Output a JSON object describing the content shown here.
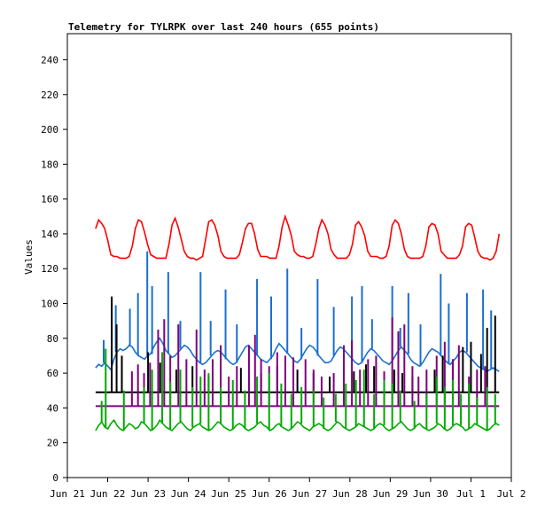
{
  "chart_data": {
    "type": "line",
    "title": "Telemetry for TYLRPK over last 240 hours (655 points)",
    "xlabel": "",
    "ylabel": "Values",
    "ylim": [
      0,
      255
    ],
    "yticks": [
      0,
      20,
      40,
      60,
      80,
      100,
      120,
      140,
      160,
      180,
      200,
      220,
      240
    ],
    "xlim": [
      "Jun 21",
      "Jul 2"
    ],
    "xticks": [
      "Jun 21",
      "Jun 22",
      "Jun 23",
      "Jun 24",
      "Jun 25",
      "Jun 26",
      "Jun 27",
      "Jun 28",
      "Jun 29",
      "Jun 30",
      "Jul 1",
      "Jul 2"
    ],
    "grid": false,
    "legend": "none",
    "x_start_days": 0.7,
    "x_end_days": 10.7,
    "series": [
      {
        "color": "#ff0000",
        "description": "daily cycle between ~126 and ~150",
        "values": [
          143,
          148,
          146,
          143,
          136,
          128,
          127,
          127,
          126,
          126,
          126,
          127,
          133,
          143,
          148,
          147,
          141,
          134,
          128,
          127,
          126,
          126,
          126,
          126,
          134,
          145,
          149,
          144,
          137,
          130,
          127,
          126,
          126,
          125,
          126,
          127,
          137,
          147,
          148,
          145,
          139,
          130,
          127,
          126,
          126,
          126,
          126,
          128,
          135,
          143,
          146,
          146,
          140,
          131,
          127,
          127,
          127,
          126,
          126,
          126,
          133,
          144,
          150,
          145,
          139,
          130,
          128,
          127,
          127,
          126,
          126,
          127,
          134,
          143,
          148,
          145,
          140,
          131,
          128,
          126,
          126,
          126,
          126,
          128,
          134,
          145,
          147,
          144,
          139,
          130,
          127,
          127,
          127,
          126,
          126,
          127,
          133,
          145,
          148,
          146,
          140,
          131,
          127,
          126,
          126,
          126,
          126,
          127,
          133,
          144,
          146,
          145,
          140,
          130,
          128,
          126,
          126,
          126,
          126,
          128,
          133,
          144,
          146,
          145,
          138,
          130,
          127,
          126,
          126,
          125,
          126,
          130,
          140
        ]
      },
      {
        "color": "#1a6fcf",
        "description": "noisy baseline ~62-75 with spikes to ~130",
        "values": [
          63,
          65,
          64,
          66,
          64,
          62,
          68,
          72,
          74,
          73,
          74,
          76,
          75,
          72,
          70,
          69,
          68,
          70,
          71,
          75,
          78,
          80,
          77,
          73,
          71,
          69,
          70,
          72,
          74,
          76,
          75,
          73,
          70,
          68,
          66,
          65,
          66,
          68,
          70,
          72,
          73,
          72,
          70,
          68,
          66,
          65,
          66,
          69,
          72,
          75,
          76,
          74,
          72,
          70,
          68,
          67,
          66,
          68,
          70,
          74,
          77,
          75,
          73,
          71,
          69,
          67,
          66,
          68,
          71,
          74,
          76,
          75,
          73,
          70,
          68,
          66,
          66,
          67,
          70,
          73,
          75,
          74,
          72,
          70,
          68,
          66,
          65,
          66,
          69,
          72,
          74,
          73,
          71,
          69,
          67,
          66,
          65,
          67,
          70,
          73,
          75,
          73,
          71,
          68,
          66,
          65,
          64,
          66,
          69,
          72,
          74,
          73,
          72,
          70,
          68,
          66,
          65,
          67,
          69,
          72,
          73,
          72,
          70,
          68,
          66,
          64,
          63,
          62,
          61,
          62,
          63,
          62,
          61
        ],
        "spikes": [
          [
            0.9,
            79
          ],
          [
            1.2,
            99
          ],
          [
            1.55,
            97
          ],
          [
            1.75,
            106
          ],
          [
            1.98,
            130
          ],
          [
            2.1,
            110
          ],
          [
            2.5,
            118
          ],
          [
            2.8,
            90
          ],
          [
            3.3,
            118
          ],
          [
            3.55,
            90
          ],
          [
            3.92,
            108
          ],
          [
            4.2,
            88
          ],
          [
            4.7,
            114
          ],
          [
            5.05,
            104
          ],
          [
            5.45,
            120
          ],
          [
            5.8,
            86
          ],
          [
            6.2,
            114
          ],
          [
            6.6,
            98
          ],
          [
            7.05,
            104
          ],
          [
            7.3,
            110
          ],
          [
            7.55,
            91
          ],
          [
            8.05,
            110
          ],
          [
            8.25,
            86
          ],
          [
            8.45,
            106
          ],
          [
            8.75,
            88
          ],
          [
            9.25,
            117
          ],
          [
            9.45,
            100
          ],
          [
            9.9,
            106
          ],
          [
            10.3,
            108
          ],
          [
            10.5,
            96
          ]
        ]
      },
      {
        "color": "#000000",
        "description": "flat ~49 with spikes",
        "baseline": 49,
        "spikes": [
          [
            1.1,
            104
          ],
          [
            1.22,
            88
          ],
          [
            1.35,
            70
          ],
          [
            2.0,
            72
          ],
          [
            2.3,
            66
          ],
          [
            2.7,
            62
          ],
          [
            3.1,
            64
          ],
          [
            3.5,
            58
          ],
          [
            4.3,
            63
          ],
          [
            4.8,
            60
          ],
          [
            5.2,
            64
          ],
          [
            5.7,
            62
          ],
          [
            6.1,
            60
          ],
          [
            6.5,
            58
          ],
          [
            7.1,
            61
          ],
          [
            7.4,
            65
          ],
          [
            7.6,
            64
          ],
          [
            8.1,
            62
          ],
          [
            8.3,
            60
          ],
          [
            8.55,
            58
          ],
          [
            9.1,
            62
          ],
          [
            9.3,
            70
          ],
          [
            9.55,
            68
          ],
          [
            9.8,
            75
          ],
          [
            10.0,
            78
          ],
          [
            10.25,
            71
          ],
          [
            10.4,
            86
          ],
          [
            10.6,
            93
          ]
        ]
      },
      {
        "color": "#800080",
        "description": "flat ~41 with frequent spikes",
        "baseline": 41,
        "spikes": [
          [
            1.6,
            61
          ],
          [
            1.75,
            65
          ],
          [
            1.9,
            60
          ],
          [
            2.05,
            66
          ],
          [
            2.25,
            85
          ],
          [
            2.4,
            91
          ],
          [
            2.55,
            70
          ],
          [
            2.75,
            88
          ],
          [
            2.95,
            68
          ],
          [
            3.2,
            85
          ],
          [
            3.4,
            62
          ],
          [
            3.6,
            68
          ],
          [
            3.8,
            76
          ],
          [
            4.0,
            58
          ],
          [
            4.2,
            64
          ],
          [
            4.5,
            76
          ],
          [
            4.65,
            82
          ],
          [
            4.8,
            68
          ],
          [
            5.0,
            64
          ],
          [
            5.2,
            72
          ],
          [
            5.4,
            70
          ],
          [
            5.6,
            69
          ],
          [
            5.9,
            68
          ],
          [
            6.1,
            62
          ],
          [
            6.3,
            58
          ],
          [
            6.6,
            60
          ],
          [
            6.85,
            76
          ],
          [
            7.05,
            79
          ],
          [
            7.25,
            62
          ],
          [
            7.45,
            68
          ],
          [
            7.65,
            70
          ],
          [
            7.85,
            61
          ],
          [
            8.05,
            92
          ],
          [
            8.2,
            84
          ],
          [
            8.35,
            88
          ],
          [
            8.55,
            64
          ],
          [
            8.7,
            58
          ],
          [
            8.9,
            62
          ],
          [
            9.15,
            70
          ],
          [
            9.35,
            78
          ],
          [
            9.55,
            68
          ],
          [
            9.7,
            76
          ],
          [
            9.95,
            58
          ],
          [
            10.15,
            62
          ],
          [
            10.35,
            64
          ]
        ]
      },
      {
        "color": "#00aa00",
        "description": "noisy ~25-35 with spikes to ~75",
        "values": [
          27,
          30,
          32,
          29,
          28,
          31,
          33,
          30,
          28,
          27,
          29,
          31,
          30,
          28,
          29,
          32,
          31,
          29,
          27,
          28,
          30,
          33,
          31,
          29,
          28,
          27,
          29,
          31,
          32,
          30,
          28,
          27,
          29,
          30,
          31,
          29,
          28,
          27,
          28,
          30,
          32,
          31,
          29,
          28,
          27,
          28,
          30,
          31,
          30,
          28,
          27,
          28,
          29,
          31,
          32,
          30,
          29,
          27,
          28,
          30,
          31,
          29,
          28,
          27,
          28,
          30,
          32,
          31,
          29,
          28,
          27,
          29,
          30,
          31,
          30,
          28,
          27,
          28,
          30,
          32,
          31,
          29,
          28,
          27,
          28,
          29,
          31,
          30,
          29,
          28,
          27,
          28,
          30,
          31,
          30,
          28,
          27,
          28,
          29,
          31,
          32,
          30,
          28,
          27,
          28,
          30,
          31,
          29,
          28,
          27,
          28,
          29,
          31,
          30,
          28,
          27,
          28,
          30,
          31,
          30,
          29,
          27,
          28,
          29,
          31,
          30,
          29,
          28,
          27,
          28,
          30,
          31,
          30
        ],
        "spikes": [
          [
            0.85,
            44
          ],
          [
            0.95,
            74
          ],
          [
            1.4,
            50
          ],
          [
            1.9,
            52
          ],
          [
            2.1,
            62
          ],
          [
            2.35,
            72
          ],
          [
            2.55,
            55
          ],
          [
            2.8,
            62
          ],
          [
            3.1,
            52
          ],
          [
            3.3,
            58
          ],
          [
            3.5,
            60
          ],
          [
            3.8,
            52
          ],
          [
            4.1,
            56
          ],
          [
            4.4,
            50
          ],
          [
            4.7,
            58
          ],
          [
            5.0,
            60
          ],
          [
            5.3,
            54
          ],
          [
            5.55,
            48
          ],
          [
            5.8,
            52
          ],
          [
            6.1,
            50
          ],
          [
            6.35,
            46
          ],
          [
            6.65,
            48
          ],
          [
            6.9,
            54
          ],
          [
            7.15,
            56
          ],
          [
            7.35,
            62
          ],
          [
            7.6,
            48
          ],
          [
            7.85,
            56
          ],
          [
            8.05,
            54
          ],
          [
            8.25,
            50
          ],
          [
            8.6,
            44
          ],
          [
            8.9,
            48
          ],
          [
            9.15,
            58
          ],
          [
            9.35,
            52
          ],
          [
            9.55,
            56
          ],
          [
            9.75,
            48
          ],
          [
            9.95,
            54
          ],
          [
            10.15,
            46
          ],
          [
            10.4,
            52
          ],
          [
            10.6,
            48
          ]
        ]
      }
    ]
  }
}
